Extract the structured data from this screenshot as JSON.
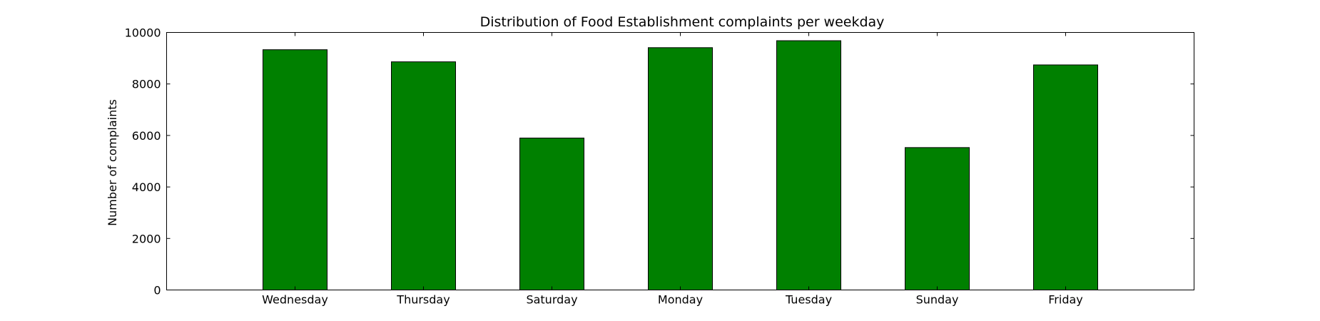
{
  "chart_data": {
    "type": "bar",
    "title": "Distribution of  Food Establishment complaints per weekday",
    "xlabel": "",
    "ylabel": "Number of complaints",
    "categories": [
      "Wednesday",
      "Thursday",
      "Saturday",
      "Monday",
      "Tuesday",
      "Sunday",
      "Friday"
    ],
    "values": [
      9330,
      8860,
      5900,
      9410,
      9680,
      5530,
      8740
    ],
    "ylim": [
      0,
      10000
    ],
    "yticks": [
      "0",
      "2000",
      "4000",
      "6000",
      "8000",
      "10000"
    ],
    "grid": false,
    "legend": "none",
    "bar_color": "#008000",
    "edge_color": "#000000"
  }
}
